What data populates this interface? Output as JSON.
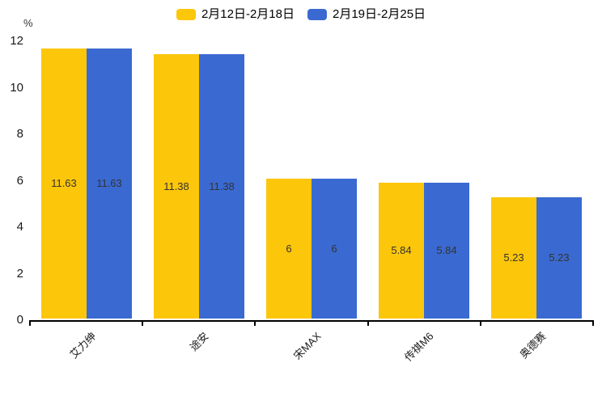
{
  "chart_data": {
    "type": "bar",
    "title": "",
    "categories": [
      "艾力绅",
      "途安",
      "宋MAX",
      "传祺M6",
      "奥德赛"
    ],
    "series": [
      {
        "name": "2月12日-2月18日",
        "color": "#FCC60B",
        "values": [
          11.63,
          11.38,
          6,
          5.84,
          5.23
        ],
        "labels": [
          "11.63",
          "11.38",
          "6",
          "5.84",
          "5.23"
        ]
      },
      {
        "name": "2月19日-2月25日",
        "color": "#3A6AD1",
        "values": [
          11.63,
          11.38,
          6,
          5.84,
          5.23
        ],
        "labels": [
          "11.63",
          "11.38",
          "6",
          "5.84",
          "5.23"
        ]
      }
    ],
    "xlabel": "",
    "ylabel": "%",
    "ylim": [
      0,
      12
    ],
    "yticks": [
      0,
      2,
      4,
      6,
      8,
      10,
      12
    ],
    "legend_position": "top",
    "grid": false,
    "value_label_color": "#333333"
  }
}
